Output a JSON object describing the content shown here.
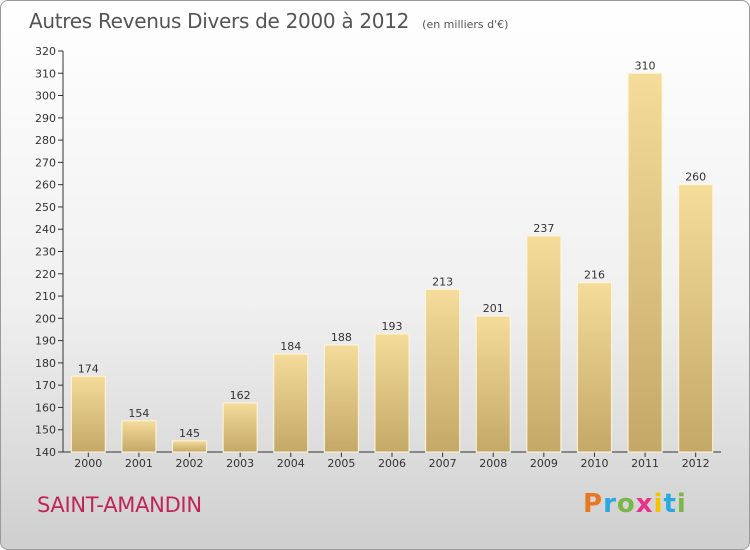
{
  "header": {
    "title": "Autres Revenus Divers de 2000 à 2012",
    "subtitle": "(en milliers d'€)"
  },
  "footer": {
    "town": "SAINT-AMANDIN",
    "logo": {
      "text": "Proxiti",
      "colors": [
        "#e87722",
        "#2aa9e0",
        "#7ab648",
        "#e8318a",
        "#f5c400",
        "#2aa9e0",
        "#7ab648"
      ]
    }
  },
  "colors": {
    "bar_fill_top": "#f5dc9a",
    "bar_fill_bottom": "#c4a868",
    "bar_edge": "#fff6d8",
    "town": "#c0245a",
    "grid": "#bbbbbb"
  },
  "chart_data": {
    "type": "bar",
    "categories": [
      "2000",
      "2001",
      "2002",
      "2003",
      "2004",
      "2005",
      "2006",
      "2007",
      "2008",
      "2009",
      "2010",
      "2011",
      "2012"
    ],
    "values": [
      174,
      154,
      145,
      162,
      184,
      188,
      193,
      213,
      201,
      237,
      216,
      310,
      260
    ],
    "data_labels": [
      "174",
      "154",
      "145",
      "162",
      "184",
      "188",
      "193",
      "213",
      "201",
      "237",
      "216",
      "310",
      "260"
    ],
    "y_ticks": [
      140,
      150,
      160,
      170,
      180,
      190,
      200,
      210,
      220,
      230,
      240,
      250,
      260,
      270,
      280,
      290,
      300,
      310,
      320
    ],
    "ylim": [
      140,
      320
    ],
    "grid": false,
    "legend": "none"
  }
}
